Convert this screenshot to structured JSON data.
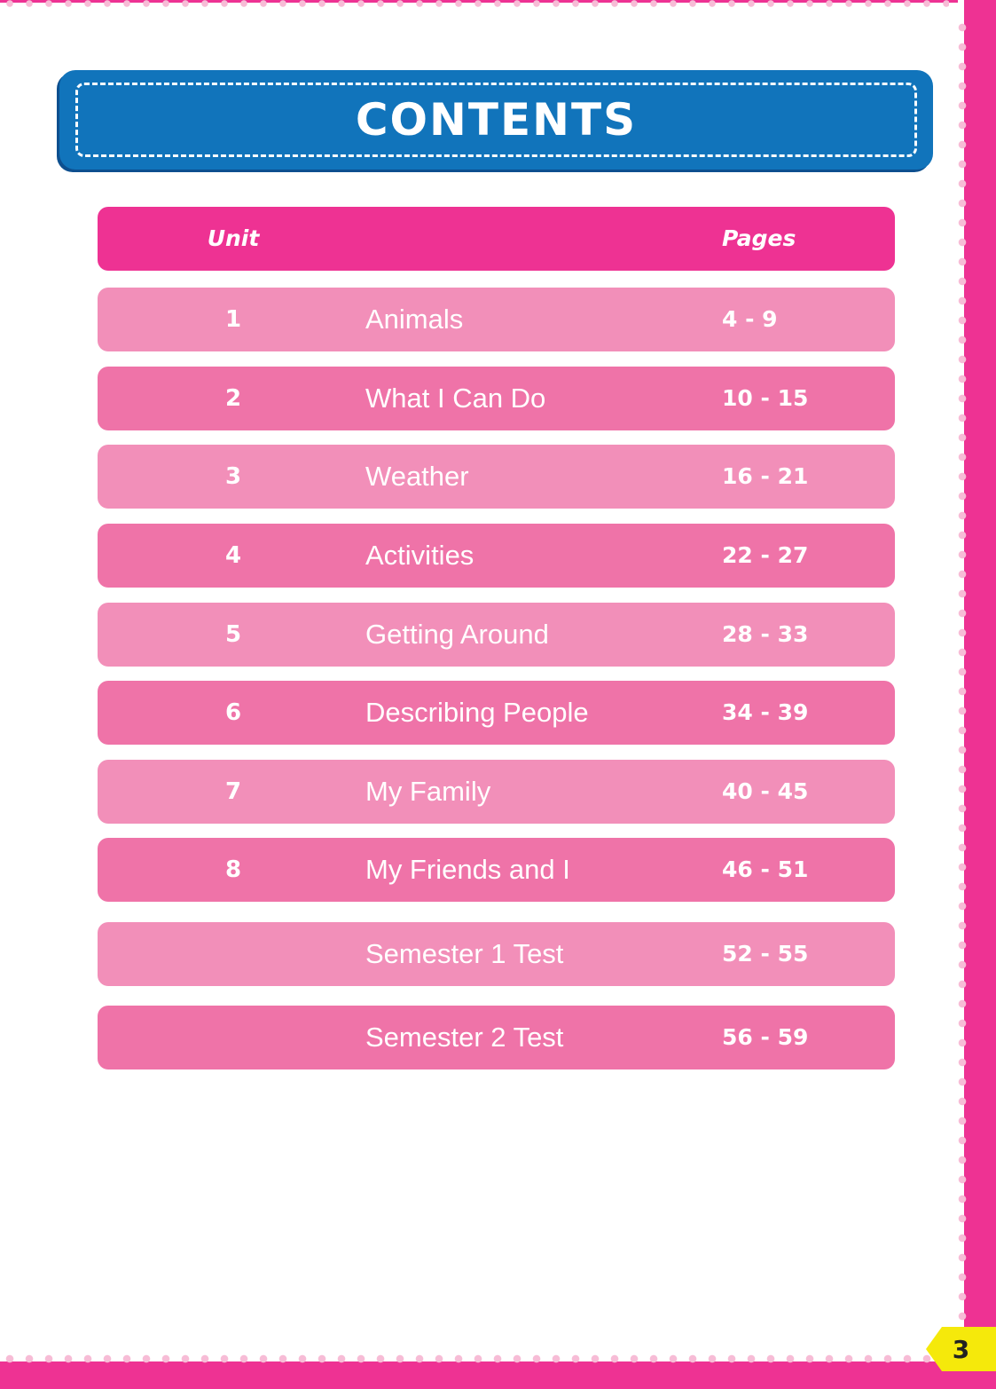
{
  "title": "CONTENTS",
  "header": {
    "unit": "Unit",
    "pages": "Pages"
  },
  "rows": [
    {
      "unit": "1",
      "title": "Animals",
      "pages": "4 - 9"
    },
    {
      "unit": "2",
      "title": "What I Can Do",
      "pages": "10 - 15"
    },
    {
      "unit": "3",
      "title": "Weather",
      "pages": "16 - 21"
    },
    {
      "unit": "4",
      "title": "Activities",
      "pages": "22 - 27"
    },
    {
      "unit": "5",
      "title": "Getting Around",
      "pages": "28 - 33"
    },
    {
      "unit": "6",
      "title": "Describing People",
      "pages": "34 - 39"
    },
    {
      "unit": "7",
      "title": "My Family",
      "pages": "40 - 45"
    },
    {
      "unit": "8",
      "title": "My Friends and I",
      "pages": "46 - 51"
    },
    {
      "unit": "",
      "title": "Semester 1 Test",
      "pages": "52 - 55"
    },
    {
      "unit": "",
      "title": "Semester 2 Test",
      "pages": "56 - 59"
    }
  ],
  "page_number": "3",
  "colors": {
    "pink": "#ee3293",
    "row_light": "#f28fb9",
    "row_dark": "#ef73a8",
    "blue": "#1174bb",
    "badge": "#f5e90b"
  }
}
